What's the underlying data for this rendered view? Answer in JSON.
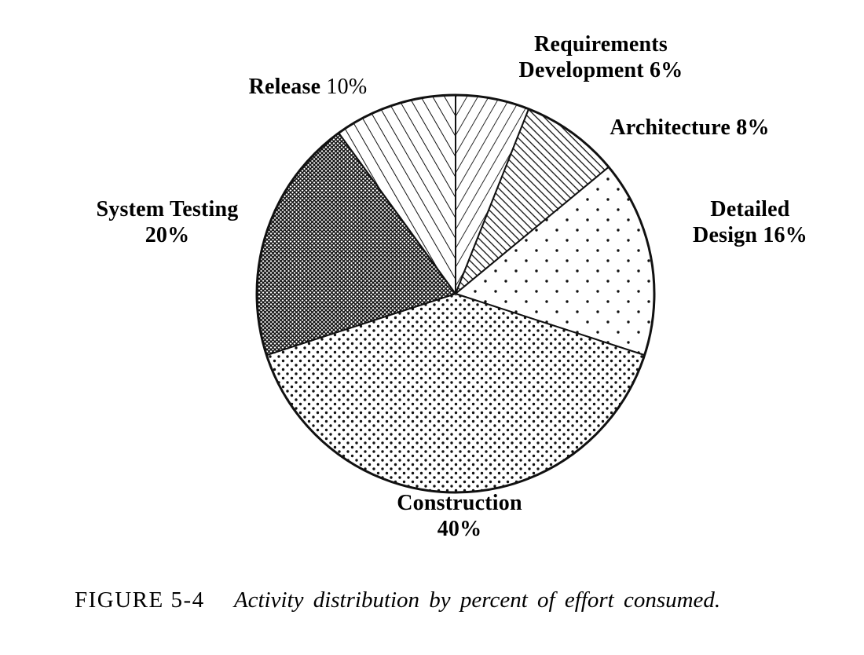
{
  "chart_data": {
    "type": "pie",
    "title": "Activity distribution by percent of effort consumed",
    "direction": "clockwise",
    "start_angle": "top",
    "slices": [
      {
        "label": "Requirements Development",
        "value": 6,
        "pattern": "diag-light"
      },
      {
        "label": "Architecture",
        "value": 8,
        "pattern": "diag-dense"
      },
      {
        "label": "Detailed Design",
        "value": 16,
        "pattern": "dots-sparse"
      },
      {
        "label": "Construction",
        "value": 40,
        "pattern": "dots-medium"
      },
      {
        "label": "System Testing",
        "value": 20,
        "pattern": "cross-dark"
      },
      {
        "label": "Release",
        "value": 10,
        "pattern": "diag-back"
      }
    ]
  },
  "labels": {
    "requirements_line1": "Requirements",
    "requirements_line2": "Development 6%",
    "architecture": "Architecture 8%",
    "detailed_line1": "Detailed",
    "detailed_line2": "Design 16%",
    "construction_line1": "Construction",
    "construction_line2": "40%",
    "system_line1": "System Testing",
    "system_line2": "20%",
    "release_name": "Release",
    "release_value": "10%"
  },
  "caption": {
    "figure": "FIGURE 5-4",
    "text": "Activity distribution by percent of effort consumed."
  },
  "colors": {
    "ink": "#111111",
    "background": "#ffffff"
  }
}
